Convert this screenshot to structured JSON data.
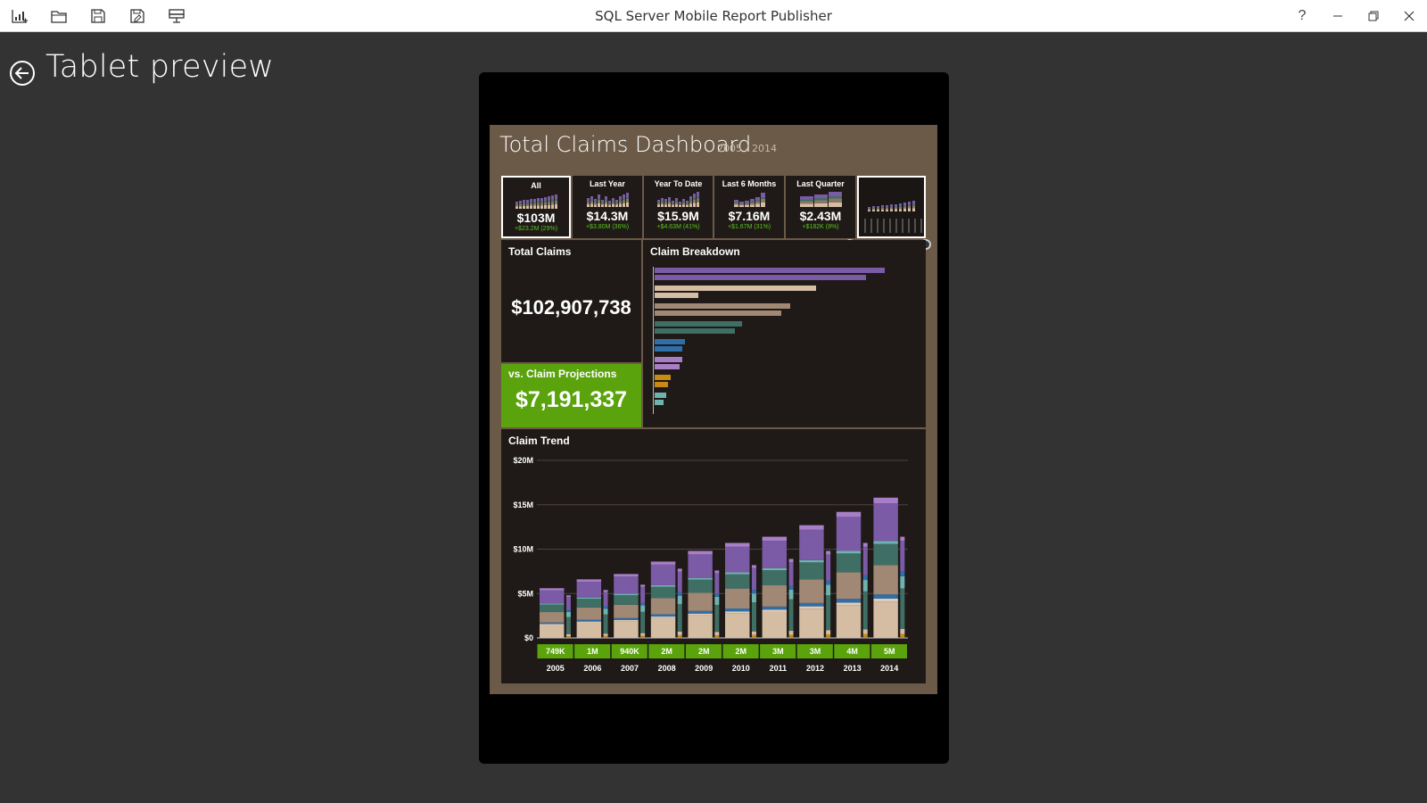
{
  "app": {
    "title": "SQL Server Mobile Report Publisher"
  },
  "toolbar": {
    "icons": [
      "new-report-icon",
      "open-folder-icon",
      "save-icon",
      "save-as-icon",
      "publish-icon"
    ]
  },
  "window": {
    "help": "?",
    "minimize": "—",
    "restore": "❐",
    "close": "✕"
  },
  "page": {
    "title": "Tablet preview"
  },
  "dashboard": {
    "title": "Total Claims Dashboard",
    "subtitle": "2005 - 2014",
    "filters": [
      {
        "label": "All",
        "value": "$103M",
        "delta": "+$23.2M (29%)",
        "selected": true
      },
      {
        "label": "Last Year",
        "value": "$14.3M",
        "delta": "+$3.80M (36%)",
        "selected": false
      },
      {
        "label": "Year To Date",
        "value": "$15.9M",
        "delta": "+$4.63M (41%)",
        "selected": false
      },
      {
        "label": "Last 6 Months",
        "value": "$7.16M",
        "delta": "+$1.67M (31%)",
        "selected": false
      },
      {
        "label": "Last Quarter",
        "value": "$2.43M",
        "delta": "+$182K (8%)",
        "selected": false
      }
    ],
    "total_claims": {
      "label": "Total Claims",
      "value": "$102,907,738"
    },
    "projection": {
      "label": "vs. Claim Projections",
      "value": "$7,191,337"
    },
    "breakdown": {
      "label": "Claim Breakdown"
    },
    "trend": {
      "label": "Claim Trend"
    },
    "colors": {
      "accent_green": "#5aa30c",
      "background": "#6b5a48",
      "panel": "#1f1a18"
    }
  },
  "chart_data": [
    {
      "type": "bar",
      "title": "Claim Breakdown",
      "orientation": "horizontal",
      "values": [
        100,
        92,
        70,
        19,
        59,
        55,
        38,
        35,
        13,
        12,
        12,
        11,
        7,
        6,
        5,
        4
      ]
    },
    {
      "type": "bar",
      "title": "Claim Trend",
      "categories": [
        "2005",
        "2006",
        "2007",
        "2008",
        "2009",
        "2010",
        "2011",
        "2012",
        "2013",
        "2014"
      ],
      "y_ticks": [
        "$0",
        "$5M",
        "$10M",
        "$15M",
        "$20M"
      ],
      "ylim": [
        0,
        20
      ],
      "series": [
        {
          "values": [
            5.6,
            6.6,
            7.2,
            8.6,
            9.8,
            10.7,
            11.4,
            12.7,
            14.2,
            15.8
          ]
        },
        {
          "values": [
            4.8,
            5.4,
            6.0,
            7.8,
            7.6,
            8.2,
            8.9,
            9.8,
            10.7,
            11.4
          ]
        }
      ],
      "bottom_labels": [
        "749K",
        "1M",
        "940K",
        "2M",
        "2M",
        "2M",
        "3M",
        "3M",
        "4M",
        "5M"
      ]
    }
  ]
}
